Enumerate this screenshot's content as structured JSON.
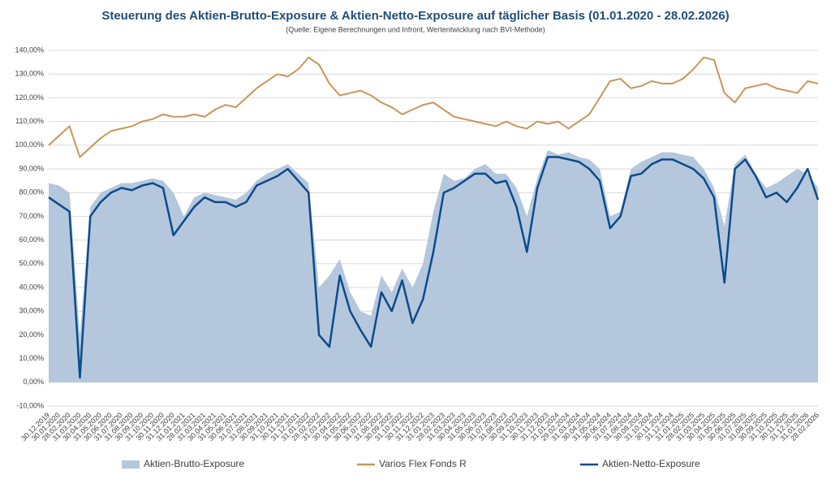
{
  "chart_data": {
    "type": "line",
    "title": "Steuerung des Aktien-Brutto-Exposure & Aktien-Netto-Exposure auf täglicher Basis (01.01.2020 - 28.02.2026)",
    "subtitle": "(Quelle: Eigene Berechnungen und Infront, Wertentwicklung nach BVI-Methode)",
    "categories": [
      "30.12.2019",
      "30.01.2020",
      "28.02.2020",
      "31.03.2020",
      "30.04.2020",
      "31.05.2020",
      "30.06.2020",
      "31.07.2020",
      "31.08.2020",
      "30.09.2020",
      "31.10.2020",
      "30.11.2020",
      "31.12.2020",
      "31.01.2021",
      "28.02.2021",
      "31.03.2021",
      "30.04.2021",
      "31.05.2021",
      "30.06.2021",
      "31.07.2021",
      "31.08.2021",
      "30.09.2021",
      "31.10.2021",
      "30.11.2021",
      "31.12.2021",
      "31.01.2022",
      "28.02.2022",
      "31.03.2022",
      "30.04.2022",
      "31.05.2022",
      "30.06.2022",
      "31.07.2022",
      "31.08.2022",
      "30.09.2022",
      "31.10.2022",
      "30.11.2022",
      "31.12.2022",
      "31.01.2023",
      "28.02.2023",
      "31.03.2023",
      "30.04.2023",
      "31.05.2023",
      "30.06.2023",
      "31.07.2023",
      "31.08.2023",
      "30.09.2023",
      "31.10.2023",
      "30.11.2023",
      "31.12.2023",
      "31.01.2024",
      "29.02.2024",
      "31.03.2024",
      "30.04.2024",
      "31.05.2024",
      "30.06.2024",
      "31.07.2024",
      "31.08.2024",
      "30.09.2024",
      "31.10.2024",
      "30.11.2024",
      "31.12.2024",
      "31.01.2025",
      "28.02.2025",
      "31.03.2025",
      "30.04.2025",
      "31.05.2025",
      "30.06.2025",
      "31.07.2025",
      "31.08.2025",
      "30.09.2025",
      "31.10.2025",
      "30.11.2025",
      "31.12.2025",
      "31.01.2026",
      "28.02.2026"
    ],
    "series": [
      {
        "name": "Aktien-Brutto-Exposure",
        "color": "#b4c7dc",
        "style": "area",
        "values": [
          84,
          83,
          80,
          20,
          74,
          80,
          82,
          84,
          84,
          85,
          86,
          85,
          80,
          70,
          78,
          80,
          79,
          78,
          77,
          80,
          85,
          88,
          90,
          92,
          88,
          84,
          40,
          45,
          52,
          38,
          30,
          28,
          45,
          38,
          48,
          40,
          50,
          72,
          88,
          85,
          86,
          90,
          92,
          88,
          88,
          82,
          70,
          86,
          98,
          96,
          97,
          95,
          94,
          90,
          70,
          72,
          90,
          93,
          95,
          97,
          97,
          96,
          95,
          90,
          82,
          66,
          92,
          96,
          88,
          82,
          84,
          87,
          90,
          88,
          82
        ]
      },
      {
        "name": "Varios Flex Fonds R",
        "color": "#c8965a",
        "style": "line",
        "values": [
          100,
          104,
          108,
          95,
          99,
          103,
          106,
          107,
          108,
          110,
          111,
          113,
          112,
          112,
          113,
          112,
          115,
          117,
          116,
          120,
          124,
          127,
          130,
          129,
          132,
          137,
          134,
          126,
          121,
          122,
          123,
          121,
          118,
          116,
          113,
          115,
          117,
          118,
          115,
          112,
          111,
          110,
          109,
          108,
          110,
          108,
          107,
          110,
          109,
          110,
          107,
          110,
          113,
          120,
          127,
          128,
          124,
          125,
          127,
          126,
          126,
          128,
          132,
          137,
          136,
          122,
          118,
          124,
          125,
          126,
          124,
          123,
          122,
          127,
          126
        ]
      },
      {
        "name": "Aktien-Netto-Exposure",
        "color": "#0d4a8a",
        "style": "line",
        "values": [
          78,
          75,
          72,
          2,
          70,
          76,
          80,
          82,
          81,
          83,
          84,
          82,
          62,
          68,
          74,
          78,
          76,
          76,
          74,
          76,
          83,
          85,
          87,
          90,
          85,
          80,
          20,
          15,
          45,
          30,
          22,
          15,
          38,
          30,
          43,
          25,
          35,
          55,
          80,
          82,
          85,
          88,
          88,
          84,
          85,
          74,
          55,
          82,
          95,
          95,
          94,
          93,
          90,
          85,
          65,
          70,
          87,
          88,
          92,
          94,
          94,
          92,
          90,
          86,
          78,
          42,
          90,
          94,
          87,
          78,
          80,
          76,
          82,
          90,
          77
        ]
      }
    ],
    "ylim": [
      -10,
      140
    ],
    "yticks": [
      {
        "value": -10,
        "label": "-10,00%"
      },
      {
        "value": 0,
        "label": "0,00%"
      },
      {
        "value": 10,
        "label": "10,00%"
      },
      {
        "value": 20,
        "label": "20,00%"
      },
      {
        "value": 30,
        "label": "30,00%"
      },
      {
        "value": 40,
        "label": "40,00%"
      },
      {
        "value": 50,
        "label": "50,00%"
      },
      {
        "value": 60,
        "label": "60,00%"
      },
      {
        "value": 70,
        "label": "70,00%"
      },
      {
        "value": 80,
        "label": "80,00%"
      },
      {
        "value": 90,
        "label": "90,00%"
      },
      {
        "value": 100,
        "label": "100,00%"
      },
      {
        "value": 110,
        "label": "110,00%"
      },
      {
        "value": 120,
        "label": "120,00%"
      },
      {
        "value": 130,
        "label": "130,00%"
      },
      {
        "value": 140,
        "label": "140,00%"
      }
    ],
    "grid": true,
    "legend": "bottom"
  }
}
